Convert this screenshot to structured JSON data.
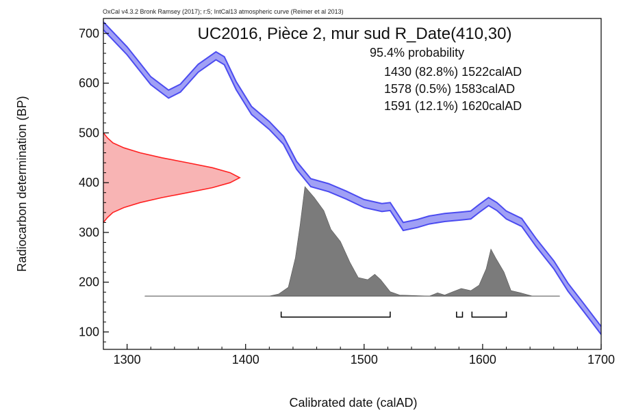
{
  "chart_data": {
    "type": "area",
    "credit": "OxCal v4.3.2 Bronk Ramsey (2017); r:5; IntCal13 atmospheric curve (Reimer et al 2013)",
    "title": "UC2016, Pièce 2, mur sud R_Date(410,30)",
    "xlabel": "Calibrated date (calAD)",
    "ylabel": "Radiocarbon determination (BP)",
    "xlim": [
      1280,
      1700
    ],
    "ylim": [
      65,
      730
    ],
    "x_ticks": [
      "1300",
      "1400",
      "1500",
      "1600",
      "1700"
    ],
    "y_ticks": [
      "100",
      "200",
      "300",
      "400",
      "500",
      "600",
      "700"
    ],
    "colors": {
      "calibration_curve": "#4b4bf0",
      "calibration_fill": "#a0a0f5",
      "radiocarbon_line": "#ff2020",
      "radiocarbon_fill": "#f8b4b4",
      "posterior_fill": "#7b7b7b",
      "range_bracket": "#000000"
    },
    "probability_text": "95.4% probability",
    "ranges": [
      {
        "label": "1430 (82.8%) 1522calAD",
        "from": 1430,
        "to": 1522
      },
      {
        "label": "1578 (0.5%) 1583calAD",
        "from": 1578,
        "to": 1583
      },
      {
        "label": "1591 (12.1%) 1620calAD",
        "from": 1591,
        "to": 1620
      }
    ],
    "calibration_curve": [
      {
        "x": 1280,
        "y": 715
      },
      {
        "x": 1290,
        "y": 690
      },
      {
        "x": 1300,
        "y": 665
      },
      {
        "x": 1310,
        "y": 635
      },
      {
        "x": 1320,
        "y": 605
      },
      {
        "x": 1335,
        "y": 578
      },
      {
        "x": 1345,
        "y": 590
      },
      {
        "x": 1360,
        "y": 630
      },
      {
        "x": 1375,
        "y": 655
      },
      {
        "x": 1382,
        "y": 645
      },
      {
        "x": 1392,
        "y": 595
      },
      {
        "x": 1405,
        "y": 545
      },
      {
        "x": 1420,
        "y": 515
      },
      {
        "x": 1432,
        "y": 485
      },
      {
        "x": 1443,
        "y": 435
      },
      {
        "x": 1455,
        "y": 400
      },
      {
        "x": 1470,
        "y": 390
      },
      {
        "x": 1485,
        "y": 375
      },
      {
        "x": 1500,
        "y": 358
      },
      {
        "x": 1515,
        "y": 350
      },
      {
        "x": 1522,
        "y": 352
      },
      {
        "x": 1533,
        "y": 312
      },
      {
        "x": 1545,
        "y": 318
      },
      {
        "x": 1555,
        "y": 325
      },
      {
        "x": 1568,
        "y": 330
      },
      {
        "x": 1582,
        "y": 333
      },
      {
        "x": 1590,
        "y": 335
      },
      {
        "x": 1597,
        "y": 348
      },
      {
        "x": 1605,
        "y": 362
      },
      {
        "x": 1612,
        "y": 352
      },
      {
        "x": 1620,
        "y": 335
      },
      {
        "x": 1633,
        "y": 320
      },
      {
        "x": 1645,
        "y": 280
      },
      {
        "x": 1660,
        "y": 235
      },
      {
        "x": 1672,
        "y": 190
      },
      {
        "x": 1685,
        "y": 150
      },
      {
        "x": 1700,
        "y": 103
      }
    ],
    "calibration_halfwidth_bp": 8,
    "radiocarbon_density": [
      {
        "y": 500,
        "d": 0.0
      },
      {
        "y": 490,
        "d": 0.03
      },
      {
        "y": 480,
        "d": 0.07
      },
      {
        "y": 470,
        "d": 0.15
      },
      {
        "y": 460,
        "d": 0.27
      },
      {
        "y": 450,
        "d": 0.43
      },
      {
        "y": 440,
        "d": 0.62
      },
      {
        "y": 430,
        "d": 0.8
      },
      {
        "y": 420,
        "d": 0.93
      },
      {
        "y": 410,
        "d": 1.0
      },
      {
        "y": 400,
        "d": 0.93
      },
      {
        "y": 390,
        "d": 0.8
      },
      {
        "y": 380,
        "d": 0.62
      },
      {
        "y": 370,
        "d": 0.43
      },
      {
        "y": 360,
        "d": 0.27
      },
      {
        "y": 350,
        "d": 0.15
      },
      {
        "y": 340,
        "d": 0.07
      },
      {
        "y": 330,
        "d": 0.03
      },
      {
        "y": 320,
        "d": 0.0
      }
    ],
    "radiocarbon_max_width_years": 115,
    "posterior_distribution": [
      {
        "x": 1315,
        "p": 0.0
      },
      {
        "x": 1420,
        "p": 0.0
      },
      {
        "x": 1428,
        "p": 0.02
      },
      {
        "x": 1436,
        "p": 0.08
      },
      {
        "x": 1442,
        "p": 0.35
      },
      {
        "x": 1446,
        "p": 0.65
      },
      {
        "x": 1450,
        "p": 1.0
      },
      {
        "x": 1458,
        "p": 0.9
      },
      {
        "x": 1466,
        "p": 0.78
      },
      {
        "x": 1472,
        "p": 0.61
      },
      {
        "x": 1480,
        "p": 0.5
      },
      {
        "x": 1488,
        "p": 0.31
      },
      {
        "x": 1495,
        "p": 0.17
      },
      {
        "x": 1503,
        "p": 0.15
      },
      {
        "x": 1509,
        "p": 0.2
      },
      {
        "x": 1514,
        "p": 0.15
      },
      {
        "x": 1522,
        "p": 0.04
      },
      {
        "x": 1530,
        "p": 0.01
      },
      {
        "x": 1555,
        "p": 0.0
      },
      {
        "x": 1562,
        "p": 0.03
      },
      {
        "x": 1568,
        "p": 0.01
      },
      {
        "x": 1575,
        "p": 0.04
      },
      {
        "x": 1582,
        "p": 0.07
      },
      {
        "x": 1590,
        "p": 0.05
      },
      {
        "x": 1597,
        "p": 0.1
      },
      {
        "x": 1603,
        "p": 0.25
      },
      {
        "x": 1607,
        "p": 0.43
      },
      {
        "x": 1611,
        "p": 0.35
      },
      {
        "x": 1618,
        "p": 0.22
      },
      {
        "x": 1624,
        "p": 0.05
      },
      {
        "x": 1632,
        "p": 0.03
      },
      {
        "x": 1642,
        "p": 0.0
      },
      {
        "x": 1665,
        "p": 0.0
      }
    ],
    "posterior_baseline_bp": 172,
    "posterior_peak_bp": 392,
    "bracket_bp": 130
  }
}
